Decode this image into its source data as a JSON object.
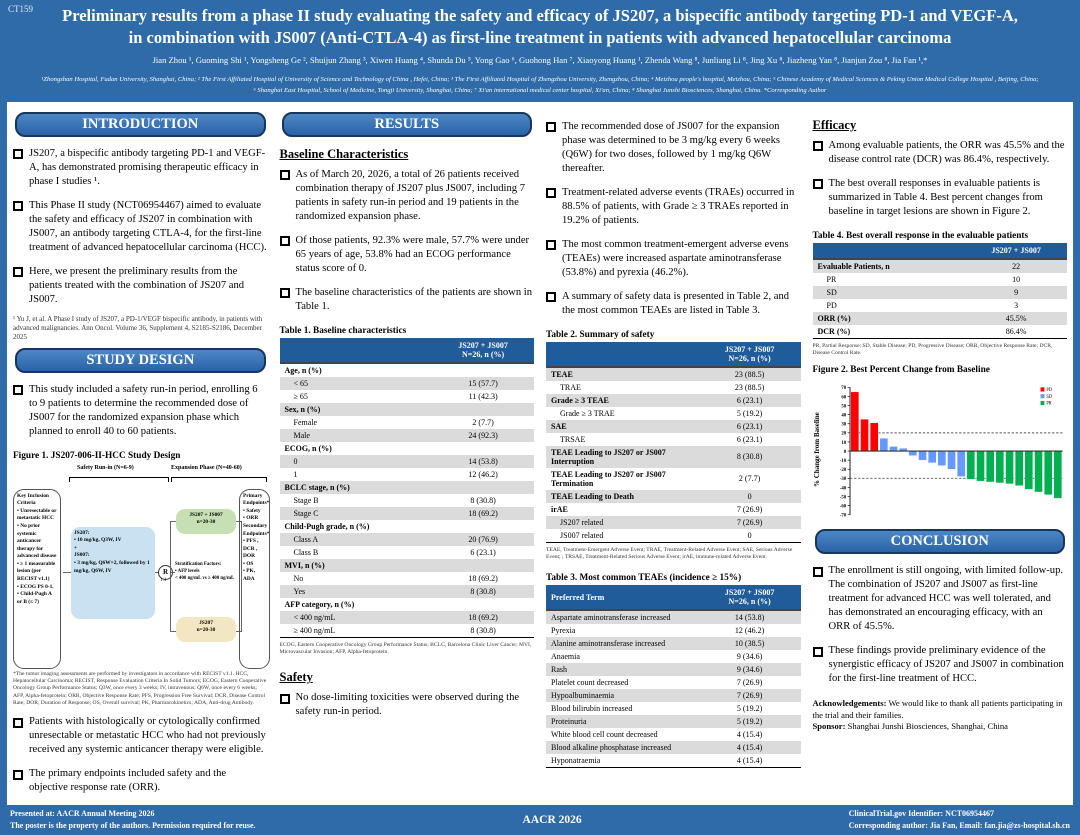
{
  "poster_id": "CT159",
  "header": {
    "title": "Preliminary results from a phase II study evaluating the safety and efficacy of JS207, a bispecific antibody targeting PD-1 and VEGF-A,\nin combination with JS007 (Anti-CTLA-4) as first-line treatment in patients with advanced hepatocellular carcinoma",
    "authors": "Jian Zhou ¹, Guoming Shi ¹, Yongsheng Ge ², Shuijun Zhang ³, Xiwen Huang ⁴, Shunda Du ⁵, Yong Gao ⁶, Guohong Han ⁷, Xiaoyong Huang ¹, Zhenda Wang ⁸, Junliang Li ⁸, Jing Xu ⁸, Jiazheng Yan ⁸, Jianjun Zou ⁸, Jia Fan ¹,*",
    "affiliations": "¹Zhongshan Hospital, Fudan University, Shanghai, China; ² The First Affiliated Hospital of University of Science and Technology of China , Hefei, China; ³ The First Affiliated Hospital of Zhengzhou University, Zhengzhou, China; ⁴ Meizhou people's hospital, Meizhou, China; ⁵ Chinese Academy of Medical Sciences & Peking Union Medical College Hospital , Beijing, China; ⁶ Shanghai East Hospital, School of Medicine, Tongji University, Shanghai, China; ⁷ Xi'an international medical center hospital, Xi'an, China; ⁸ Shanghai Junshi Biosciences, Shanghai, China. *Corresponding Author"
  },
  "introduction": {
    "title": "INTRODUCTION",
    "bullets": [
      "JS207, a bispecific antibody targeting PD-1 and VEGF-A, has demonstrated promising therapeutic efficacy in phase I studies ¹.",
      "This Phase II study (NCT06954467) aimed to evaluate the safety and efficacy of JS207 in combination with JS007, an antibody targeting CTLA-4, for the first-line treatment of advanced hepatocellular carcinoma (HCC).",
      "Here, we present the preliminary results from the patients treated with the combination of JS207 and JS007."
    ],
    "footnote": "¹ Yu J, et al. A Phase I study of JS207, a PD-1/VEGF bispecific antibody, in patients with advanced malignancies. Ann Oncol. Volume 36, Supplement 4, S2185-S2186, December 2025"
  },
  "study_design": {
    "title": "STUDY DESIGN",
    "bullets": [
      "This study included a  safety run-in period, enrolling 6 to 9 patients to determine the recommended dose of JS007 for the randomized expansion phase which planned to enroll 40 to 60 patients."
    ],
    "figure1": {
      "caption": "Figure 1. JS207-006-II-HCC Study Design",
      "safety_runin_label": "Safety Run-in (N=6-9)",
      "expansion_label": "Expansion Phase (N=40-60)",
      "key_inclusion": "Key Inclusion\nCriteria\n• Unresectable or metastatic HCC\n• No prior systemic anticancer therapy for advanced disease\n• ≥ 1 measurable lesion (per RECIST v1.1)\n• ECOG PS 0-1.\n• Child-Pugh A or B (≤ 7)",
      "dose_box": "JS207:\n•  10 mg/kg, Q3W, IV\n+\nJS007:\n•  3 mg/kg, Q6W×2, followed by 1 mg/kg, Q6W, IV",
      "randomization": "R",
      "randomization_ratio": "1:1",
      "stratification": "Stratification Factors:\n• AFP levels\n< 400 ng/mL vs ≥ 400 ng/mL",
      "arm1": "JS207 + JS007\nn=20-30",
      "arm2": "JS207\nn=20-30",
      "endpoints": "Primary Endpoints*\n• Safety\n• ORR\nSecondary Endpoints*\n• PFS , DCR , DOR\n• OS\n• PK,  ADA"
    },
    "figure1_footnote": "*The tumor imaging assessments are performed by investigators in accordance with RECIST v1.1. HCC, Hepatocellular Carcinoma; RECIST, Response Evaluation Criteria In Solid Tumors; ECOG, Eastern Cooperative Oncology Group Performance Status; Q3W, once every 3 weeks; IV, intravenous; Q6W, once every 6 weeks; AFP, Alpha-fetoprotein; ORR, Objective Response Rate; PFS, Progression Free Survival; DCR, Disease Control Rate; DOR, Duration of Response; OS, Overall survival; PK, Pharmacokinetics; ADA, Anti-drug Antibody.",
    "bullets2": [
      "Patients with histologically or cytologically confirmed unresectable or metastatic HCC who had not previously received any systemic anticancer therapy were eligible.",
      "The primary endpoints included safety and the objective response rate (ORR)."
    ]
  },
  "results": {
    "title": "RESULTS",
    "baseline_heading": "Baseline Characteristics",
    "baseline_bullets": [
      "As of March 20, 2026, a total of 26 patients received  combination therapy of JS207 plus JS007, including 7 patients in safety run-in period and 19 patients in the randomized expansion phase.",
      "Of those patients, 92.3% were male, 57.7% were under 65 years of age, 53.8% had an ECOG performance status score of 0.",
      "The baseline characteristics of the patients are shown in Table 1."
    ],
    "safety_heading": "Safety",
    "safety_bullet": "No dose-limiting toxicities were observed during the safety run-in period.",
    "col3_bullets": [
      "The recommended dose of JS007 for the expansion phase was determined to be 3 mg/kg every 6 weeks (Q6W) for two doses, followed by 1 mg/kg Q6W thereafter.",
      "Treatment-related adverse events (TRAEs) occurred in 88.5% of patients, with Grade ≥ 3 TRAEs reported in 19.2% of patients.",
      "The most common treatment-emergent adverse evens (TEAEs) were increased aspartate aminotransferase (53.8%) and pyrexia (46.2%).",
      "A summary of safety data is presented in Table 2, and the most common TEAEs are listed in Table 3."
    ],
    "efficacy_heading": "Efficacy",
    "efficacy_bullets": [
      "Among evaluable patients, the ORR was 45.5% and the disease control rate (DCR) was 86.4%, respectively.",
      "The best overall responses in evaluable patients is summarized in Table 4. Best percent changes from baseline in target lesions are shown in Figure 2."
    ]
  },
  "tables": {
    "table1": {
      "caption": "Table 1. Baseline characteristics",
      "col_header": "JS207 + JS007\nN=26, n (%)",
      "rows": [
        {
          "label": "Age, n (%)",
          "value": "",
          "t": "cat"
        },
        {
          "label": "< 65",
          "value": "15 (57.7)",
          "t": "sub"
        },
        {
          "label": "≥ 65",
          "value": "11 (42.3)",
          "t": "sub"
        },
        {
          "label": "Sex, n (%)",
          "value": "",
          "t": "cat"
        },
        {
          "label": "Female",
          "value": "2 (7.7)",
          "t": "sub"
        },
        {
          "label": "Male",
          "value": "24 (92.3)",
          "t": "sub"
        },
        {
          "label": "ECOG, n (%)",
          "value": "",
          "t": "cat"
        },
        {
          "label": "0",
          "value": "14 (53.8)",
          "t": "sub"
        },
        {
          "label": "1",
          "value": "12 (46.2)",
          "t": "sub"
        },
        {
          "label": "BCLC stage, n (%)",
          "value": "",
          "t": "cat"
        },
        {
          "label": "Stage B",
          "value": "8 (30.8)",
          "t": "sub"
        },
        {
          "label": "Stage C",
          "value": "18 (69.2)",
          "t": "sub"
        },
        {
          "label": "Child-Pugh grade, n (%)",
          "value": "",
          "t": "cat"
        },
        {
          "label": "Class A",
          "value": "20 (76.9)",
          "t": "sub"
        },
        {
          "label": "Class B",
          "value": "6 (23.1)",
          "t": "sub"
        },
        {
          "label": "MVI, n (%)",
          "value": "",
          "t": "cat"
        },
        {
          "label": "No",
          "value": "18 (69.2)",
          "t": "sub"
        },
        {
          "label": "Yes",
          "value": "8 (30.8)",
          "t": "sub"
        },
        {
          "label": "AFP category, n (%)",
          "value": "",
          "t": "cat"
        },
        {
          "label": "< 400 ng/mL",
          "value": "18 (69.2)",
          "t": "sub"
        },
        {
          "label": "≥ 400 ng/mL",
          "value": "8 (30.8)",
          "t": "sub"
        }
      ],
      "footnote": "ECOG, Eastern Cooperative Oncology Group Performance Status; BCLC, Barcelona Clinic Liver Cancer; MVI, Microvascular Invasion; AFP, Alpha-fetoprotein."
    },
    "table2": {
      "caption": "Table 2. Summary of safety",
      "col_header": "JS207 + JS007\nN=26, n (%)",
      "rows": [
        {
          "label": "TEAE",
          "value": "23 (88.5)",
          "t": "cat"
        },
        {
          "label": "TRAE",
          "value": "23 (88.5)",
          "t": "sub"
        },
        {
          "label": "Grade ≥ 3 TEAE",
          "value": "6 (23.1)",
          "t": "cat"
        },
        {
          "label": "Grade ≥ 3 TRAE",
          "value": "5 (19.2)",
          "t": "sub"
        },
        {
          "label": "SAE",
          "value": "6 (23.1)",
          "t": "cat"
        },
        {
          "label": "TRSAE",
          "value": "6 (23.1)",
          "t": "sub"
        },
        {
          "label": "TEAE Leading to JS207 or JS007 Interruption",
          "value": "8 (30.8)",
          "t": "cat"
        },
        {
          "label": "TEAE Leading to JS207 or JS007 Termination",
          "value": "2 (7.7)",
          "t": "cat"
        },
        {
          "label": "TEAE Leading to Death",
          "value": "0",
          "t": "cat"
        },
        {
          "label": "irAE",
          "value": "7 (26.9)",
          "t": "cat"
        },
        {
          "label": "JS207 related",
          "value": "7 (26.9)",
          "t": "sub"
        },
        {
          "label": "JS007 related",
          "value": "0",
          "t": "sub"
        }
      ],
      "footnote": "TEAE, Treatment-Emergent Adverse Event; TRAE, Treatment-Related Adverse Event; SAE, Serious Adverse Event; ; TRSAE, Treatment-Related Serious Adverse Event; irAE, immune-related Adverse Event."
    },
    "table3": {
      "caption": "Table 3. Most common TEAEs (incidence ≥ 15%)",
      "label_header": "Preferred Term",
      "col_header": "JS207 + JS007\nN=26, n (%)",
      "rows": [
        {
          "label": "Aspartate aminotransferase increased",
          "value": "14 (53.8)"
        },
        {
          "label": "Pyrexia",
          "value": "12 (46.2)"
        },
        {
          "label": "Alanine aminotransferase increased",
          "value": "10 (38.5)"
        },
        {
          "label": "Anaemia",
          "value": "9 (34.6)"
        },
        {
          "label": "Rash",
          "value": "9 (34.6)"
        },
        {
          "label": "Platelet count decreased",
          "value": "7 (26.9)"
        },
        {
          "label": "Hypoalbuminaemia",
          "value": "7 (26.9)"
        },
        {
          "label": "Blood bilirubin increased",
          "value": "5 (19.2)"
        },
        {
          "label": "Proteinuria",
          "value": "5 (19.2)"
        },
        {
          "label": "White blood cell count decreased",
          "value": "4 (15.4)"
        },
        {
          "label": "Blood alkaline phosphatase increased",
          "value": "4 (15.4)"
        },
        {
          "label": "Hyponatraemia",
          "value": "4 (15.4)"
        }
      ]
    },
    "table4": {
      "caption": "Table 4. Best overall response in the evaluable patients",
      "col_header": "JS207 + JS007",
      "rows": [
        {
          "label": "Evaluable Patients, n",
          "value": "22",
          "t": "cat"
        },
        {
          "label": "PR",
          "value": "10",
          "t": "sub"
        },
        {
          "label": "SD",
          "value": "9",
          "t": "sub"
        },
        {
          "label": "PD",
          "value": "3",
          "t": "sub"
        },
        {
          "label": "ORR (%)",
          "value": "45.5%",
          "t": "cat"
        },
        {
          "label": "DCR (%)",
          "value": "86.4%",
          "t": "cat"
        }
      ],
      "footnote": "PR, Partial Response; SD, Stable Disease; PD, Progressive Disease; ORR, Objective Response Rate; DCR, Disease Control Rate."
    }
  },
  "chart_data": {
    "type": "bar",
    "title": "Figure 2. Best Percent Change from Baseline",
    "ylabel": "% Change from Baseline",
    "ylim": [
      -70,
      70
    ],
    "ytick_step": 10,
    "ref_lines": [
      20,
      -30
    ],
    "grid": false,
    "legend_position": "top-right",
    "legend": [
      {
        "name": "PD",
        "color": "#FF0000"
      },
      {
        "name": "SD",
        "color": "#6699FF"
      },
      {
        "name": "PR",
        "color": "#00B050"
      }
    ],
    "bars": [
      {
        "v": 65,
        "g": "PD"
      },
      {
        "v": 35,
        "g": "PD"
      },
      {
        "v": 31,
        "g": "PD"
      },
      {
        "v": 14,
        "g": "SD"
      },
      {
        "v": 5,
        "g": "SD"
      },
      {
        "v": 3,
        "g": "SD"
      },
      {
        "v": -5,
        "g": "SD"
      },
      {
        "v": -10,
        "g": "SD"
      },
      {
        "v": -13,
        "g": "SD"
      },
      {
        "v": -16,
        "g": "SD"
      },
      {
        "v": -20,
        "g": "SD"
      },
      {
        "v": -28,
        "g": "SD"
      },
      {
        "v": -31,
        "g": "PR"
      },
      {
        "v": -33,
        "g": "PR"
      },
      {
        "v": -34,
        "g": "PR"
      },
      {
        "v": -35,
        "g": "PR"
      },
      {
        "v": -36,
        "g": "PR"
      },
      {
        "v": -38,
        "g": "PR"
      },
      {
        "v": -42,
        "g": "PR"
      },
      {
        "v": -45,
        "g": "PR"
      },
      {
        "v": -48,
        "g": "PR"
      },
      {
        "v": -52,
        "g": "PR"
      }
    ]
  },
  "conclusion": {
    "title": "CONCLUSION",
    "bullets": [
      "The enrollment is still ongoing, with limited follow-up. The combination of JS207 and JS007 as first-line treatment for advanced HCC was well tolerated, and has demonstrated an encouraging efficacy, with an ORR of 45.5%.",
      "These findings  provide preliminary evidence of the synergistic efficacy of JS207 and JS007 in combination for the first-line treatment of HCC."
    ],
    "ack_label": "Acknowledgements:",
    "ack_text": " We would like to thank all patients participating in the trial and their families.",
    "sponsor_label": "Sponsor:",
    "sponsor_text": " Shanghai Junshi Biosciences, Shanghai, China"
  },
  "footer": {
    "left1": "Presented at: AACR Annual Meeting 2026",
    "left2": "The poster is the property of the authors. Permission required for reuse.",
    "center": "AACR 2026",
    "right1": "ClinicalTrial.gov Identifier: NCT06954467",
    "right2": "Corresponding author: Jia Fan, Email: fan.jia@zs-hospital.sh.cn"
  },
  "colors": {
    "banner_blue": "#2E6BA8",
    "pill_blue": "#2F6CB3",
    "table_header_blue": "#1F5C99",
    "stripe_gray": "#DBDBDB",
    "arm1_green": "#C6E0B4",
    "arm2_yellow": "#F3E7C3",
    "dose_blue": "#C9E2F2"
  }
}
